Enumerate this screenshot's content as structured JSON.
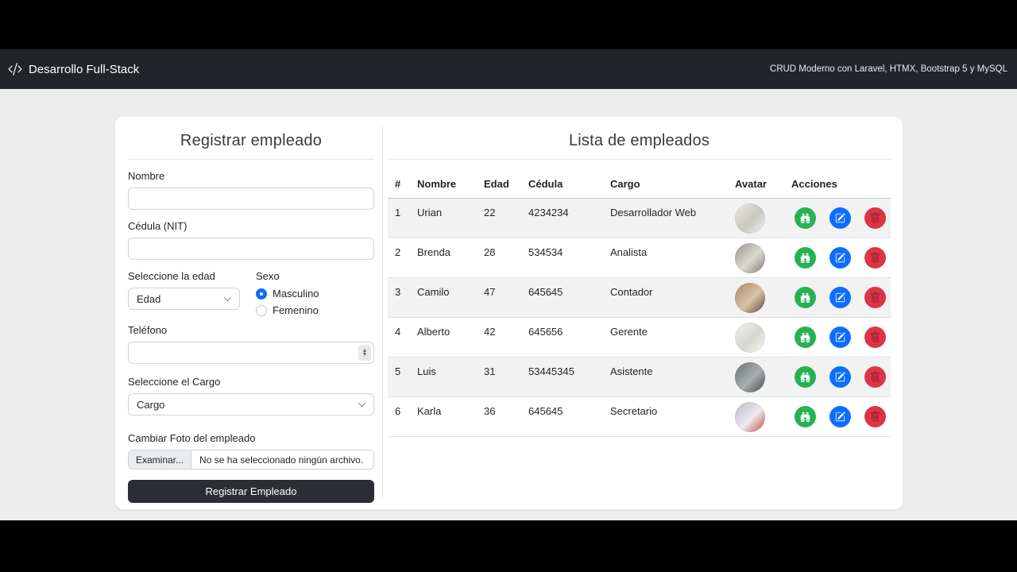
{
  "navbar": {
    "brand": "Desarrollo Full-Stack",
    "tagline": "CRUD Moderno con Laravel, HTMX, Bootstrap 5 y MySQL"
  },
  "form": {
    "title": "Registrar empleado",
    "nombre_label": "Nombre",
    "cedula_label": "Cédula (NIT)",
    "edad_label": "Seleccione la edad",
    "edad_value": "Edad",
    "sexo_label": "Sexo",
    "sexo_options": [
      "Masculino",
      "Femenino"
    ],
    "sexo_selected": "Masculino",
    "telefono_label": "Teléfono",
    "cargo_label": "Seleccione el Cargo",
    "cargo_value": "Cargo",
    "foto_label": "Cambiar Foto del empleado",
    "file_button_label": "Examinar...",
    "file_status": "No se ha seleccionado ningún archivo.",
    "submit_label": "Registrar Empleado"
  },
  "table": {
    "title": "Lista de empleados",
    "columns": [
      "#",
      "Nombre",
      "Edad",
      "Cédula",
      "Cargo",
      "Avatar",
      "Acciones"
    ],
    "rows": [
      {
        "id": "1",
        "nombre": "Urian",
        "edad": "22",
        "cedula": "4234234",
        "cargo": "Desarrollador Web",
        "avatar_colors": [
          "#ecebe7",
          "#c9c7c1",
          "#f5f4f1"
        ]
      },
      {
        "id": "2",
        "nombre": "Brenda",
        "edad": "28",
        "cedula": "534534",
        "cargo": "Analista",
        "avatar_colors": [
          "#9a958e",
          "#dcd9d3",
          "#7d7871"
        ]
      },
      {
        "id": "3",
        "nombre": "Camilo",
        "edad": "47",
        "cedula": "645645",
        "cargo": "Contador",
        "avatar_colors": [
          "#a98a68",
          "#d9c3a6",
          "#5c4532"
        ]
      },
      {
        "id": "4",
        "nombre": "Alberto",
        "edad": "42",
        "cedula": "645656",
        "cargo": "Gerente",
        "avatar_colors": [
          "#f1f0ec",
          "#d6d5cf",
          "#fbfbf8"
        ]
      },
      {
        "id": "5",
        "nombre": "Luis",
        "edad": "31",
        "cedula": "53445345",
        "cargo": "Asistente",
        "avatar_colors": [
          "#6b7074",
          "#aab0b0",
          "#42464a"
        ]
      },
      {
        "id": "6",
        "nombre": "Karla",
        "edad": "36",
        "cedula": "645645",
        "cargo": "Secretario",
        "avatar_colors": [
          "#bcb9c6",
          "#ebeaf0",
          "#c0473d"
        ]
      }
    ],
    "action_names": [
      "view",
      "edit",
      "delete"
    ]
  },
  "colors": {
    "navbar_bg": "#212529",
    "page_bg": "#ededed",
    "accent_blue": "#0d6efd",
    "success_green": "#27b152",
    "danger_red": "#dc3545",
    "dark_button": "#2b2f33"
  }
}
